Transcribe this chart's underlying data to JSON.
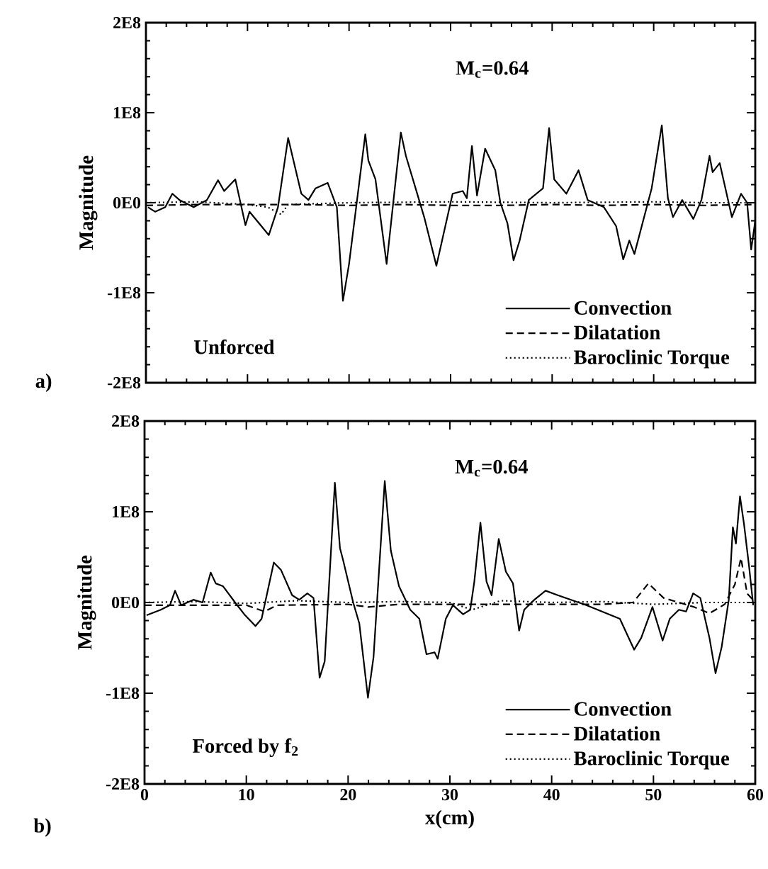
{
  "chart_data": [
    {
      "type": "line",
      "ylabel": "Magnitude",
      "legend": "bottom right",
      "tick_labels": "y",
      "annotations": [
        "M$_{c}$=0.64",
        "Unforced",
        "a)"
      ],
      "xlim": [
        0,
        60
      ],
      "xticks": [
        {
          "value": 0,
          "label": null
        },
        {
          "value": 10,
          "label": null
        },
        {
          "value": 20,
          "label": null
        },
        {
          "value": 30,
          "label": null
        },
        {
          "value": 40,
          "label": null
        },
        {
          "value": 50,
          "label": null
        },
        {
          "value": 60,
          "label": null
        }
      ],
      "ylim": [
        -200000000.0,
        200000000.0
      ],
      "yticks": [
        {
          "value": -200000000.0,
          "label": "-2E8"
        },
        {
          "value": -100000000.0,
          "label": "-1E8"
        },
        {
          "value": 0,
          "label": "0E0"
        },
        {
          "value": 100000000.0,
          "label": "1E8"
        },
        {
          "value": 200000000.0,
          "label": "2E8"
        }
      ],
      "series": [
        {
          "name": "Convection",
          "color": "#000000",
          "line_style": "solid",
          "x": [
            0.2,
            0.9,
            1.9,
            2.6,
            3.3,
            4.7,
            6.0,
            7.1,
            7.7,
            8.8,
            9.8,
            10.2,
            12.1,
            13.0,
            14.0,
            15.3,
            16.0,
            16.7,
            17.9,
            18.8,
            19.4,
            20.0,
            21.6,
            21.9,
            22.6,
            23.7,
            25.1,
            25.6,
            27.4,
            28.6,
            30.2,
            31.2,
            31.6,
            32.1,
            32.6,
            33.4,
            34.4,
            34.9,
            35.6,
            36.2,
            36.8,
            37.7,
            39.1,
            39.7,
            40.2,
            41.4,
            42.6,
            43.5,
            45.1,
            46.3,
            47.0,
            47.6,
            48.1,
            49.8,
            50.8,
            51.4,
            51.9,
            52.8,
            53.9,
            54.7,
            55.5,
            55.8,
            56.5,
            57.7,
            58.6,
            59.2,
            59.6,
            60
          ],
          "values": [
            -5000000.0,
            -10000000.0,
            -5000000.0,
            10000000.0,
            3000000.0,
            -5000000.0,
            3000000.0,
            25000000.0,
            13000000.0,
            26000000.0,
            -25000000.0,
            -10000000.0,
            -36000000.0,
            -5000000.0,
            72000000.0,
            10000000.0,
            3000000.0,
            16000000.0,
            22000000.0,
            -5000000.0,
            -109000000.0,
            -68000000.0,
            76000000.0,
            47000000.0,
            26000000.0,
            -68000000.0,
            78000000.0,
            52000000.0,
            -16000000.0,
            -70000000.0,
            10000000.0,
            13000000.0,
            5000000.0,
            63000000.0,
            8000000.0,
            60000000.0,
            36000000.0,
            0,
            -23000000.0,
            -64000000.0,
            -42000000.0,
            3000000.0,
            16000000.0,
            83000000.0,
            26000000.0,
            10000000.0,
            36000000.0,
            3000000.0,
            -5000000.0,
            -26000000.0,
            -63000000.0,
            -42000000.0,
            -57000000.0,
            16000000.0,
            86000000.0,
            5000000.0,
            -16000000.0,
            3000000.0,
            -18000000.0,
            3000000.0,
            52000000.0,
            34000000.0,
            44000000.0,
            -16000000.0,
            10000000.0,
            0,
            -52000000.0,
            -20000000.0
          ]
        },
        {
          "name": "Dilatation",
          "color": "#000000",
          "line_style": "dashed",
          "x": [
            0,
            5,
            10,
            15,
            20,
            25,
            30,
            35,
            40,
            45,
            50,
            55,
            60
          ],
          "values": [
            -3000000.0,
            -2000000.0,
            -2000000.0,
            -2000000.0,
            -3000000.0,
            -2000000.0,
            -3000000.0,
            -3000000.0,
            -2000000.0,
            -3000000.0,
            -2000000.0,
            -3000000.0,
            -2000000.0
          ]
        },
        {
          "name": "Baroclinic Torque",
          "color": "#000000",
          "line_style": "dotted",
          "x": [
            0,
            5,
            10,
            12,
            13.3,
            14,
            20,
            30,
            40,
            50,
            55,
            60
          ],
          "values": [
            0,
            1000000.0,
            -2000000.0,
            -5000000.0,
            -13000000.0,
            -2000000.0,
            0,
            1000000.0,
            0,
            1000000.0,
            0,
            0
          ]
        }
      ]
    },
    {
      "type": "line",
      "xlabel": "x(cm)",
      "ylabel": "Magnitude",
      "legend": "bottom right",
      "annotations": [
        "M$_{c}$=0.64",
        "Forced by f$_{2}$",
        "b)"
      ],
      "xlim": [
        0,
        60
      ],
      "xticks": [
        0,
        10,
        20,
        30,
        40,
        50,
        60
      ],
      "ylim": [
        -200000000.0,
        200000000.0
      ],
      "yticks": [
        {
          "value": -200000000.0,
          "label": "-2E8"
        },
        {
          "value": -100000000.0,
          "label": "-1E8"
        },
        {
          "value": 0,
          "label": "0E0"
        },
        {
          "value": 100000000.0,
          "label": "1E8"
        },
        {
          "value": 200000000.0,
          "label": "2E8"
        }
      ],
      "series": [
        {
          "name": "Convection",
          "color": "#000000",
          "line_style": "solid",
          "x": [
            0.2,
            1.6,
            2.5,
            3.0,
            3.6,
            4.8,
            5.7,
            6.5,
            7.0,
            7.7,
            8.9,
            9.8,
            10.9,
            11.5,
            12.7,
            13.4,
            14.5,
            15.2,
            16.0,
            16.6,
            17.2,
            17.7,
            18.7,
            19.2,
            19.5,
            20.5,
            21.1,
            21.95,
            22.5,
            23.6,
            24.2,
            25.0,
            26.1,
            27.0,
            27.7,
            28.5,
            28.8,
            29.6,
            30.3,
            31.3,
            32.0,
            32.4,
            33.0,
            33.6,
            34.1,
            34.8,
            35.5,
            36.2,
            36.8,
            37.3,
            38.3,
            39.4,
            40.6,
            43.4,
            46.7,
            48.1,
            48.8,
            49.9,
            50.9,
            51.6,
            52.5,
            53.2,
            53.9,
            54.6,
            55.5,
            56.1,
            56.7,
            57.4,
            57.8,
            58.1,
            58.5,
            58.9,
            59.4,
            59.8
          ],
          "values": [
            -14000000.0,
            -8000000.0,
            -3000000.0,
            13000000.0,
            -3000000.0,
            3000000.0,
            0,
            33000000.0,
            21000000.0,
            18000000.0,
            0,
            -13000000.0,
            -26000000.0,
            -18000000.0,
            44000000.0,
            36000000.0,
            8000000.0,
            3000000.0,
            10000000.0,
            5000000.0,
            -83000000.0,
            -65000000.0,
            132000000.0,
            60000000.0,
            47000000.0,
            0,
            -23000000.0,
            -105000000.0,
            -60000000.0,
            134000000.0,
            57000000.0,
            18000000.0,
            -8000000.0,
            -18000000.0,
            -57000000.0,
            -55000000.0,
            -62000000.0,
            -18000000.0,
            -3000000.0,
            -13000000.0,
            -8000000.0,
            23000000.0,
            88000000.0,
            23000000.0,
            8000000.0,
            70000000.0,
            34000000.0,
            21000000.0,
            -31000000.0,
            -8000000.0,
            3000000.0,
            13000000.0,
            8000000.0,
            -3000000.0,
            -18000000.0,
            -52000000.0,
            -39000000.0,
            -5000000.0,
            -42000000.0,
            -18000000.0,
            -8000000.0,
            -10000000.0,
            10000000.0,
            5000000.0,
            -39000000.0,
            -78000000.0,
            -49000000.0,
            3000000.0,
            83000000.0,
            65000000.0,
            117000000.0,
            86000000.0,
            39000000.0,
            -3000000.0
          ]
        },
        {
          "name": "Dilatation",
          "color": "#000000",
          "line_style": "dashed",
          "x": [
            0,
            5,
            10,
            11.8,
            13,
            20,
            22,
            25,
            30,
            35,
            40,
            45,
            48,
            49.5,
            51,
            54,
            55.5,
            57,
            58,
            58.6,
            59.2,
            60
          ],
          "values": [
            -3000000.0,
            -3000000.0,
            -3000000.0,
            -10000000.0,
            -3000000.0,
            -2000000.0,
            -5000000.0,
            -2000000.0,
            -2000000.0,
            -2000000.0,
            -2000000.0,
            -2000000.0,
            0,
            21000000.0,
            5000000.0,
            -5000000.0,
            -12000000.0,
            -2000000.0,
            20000000.0,
            49000000.0,
            10000000.0,
            0
          ]
        },
        {
          "name": "Baroclinic Torque",
          "color": "#000000",
          "line_style": "dotted",
          "x": [
            0,
            5,
            10,
            15,
            20,
            25,
            30,
            32.2,
            35,
            40,
            45,
            50,
            55,
            60
          ],
          "values": [
            0,
            1000000.0,
            -1000000.0,
            2000000.0,
            0,
            1000000.0,
            0,
            -8000000.0,
            2000000.0,
            0,
            1000000.0,
            -2000000.0,
            0,
            0
          ]
        }
      ]
    }
  ]
}
